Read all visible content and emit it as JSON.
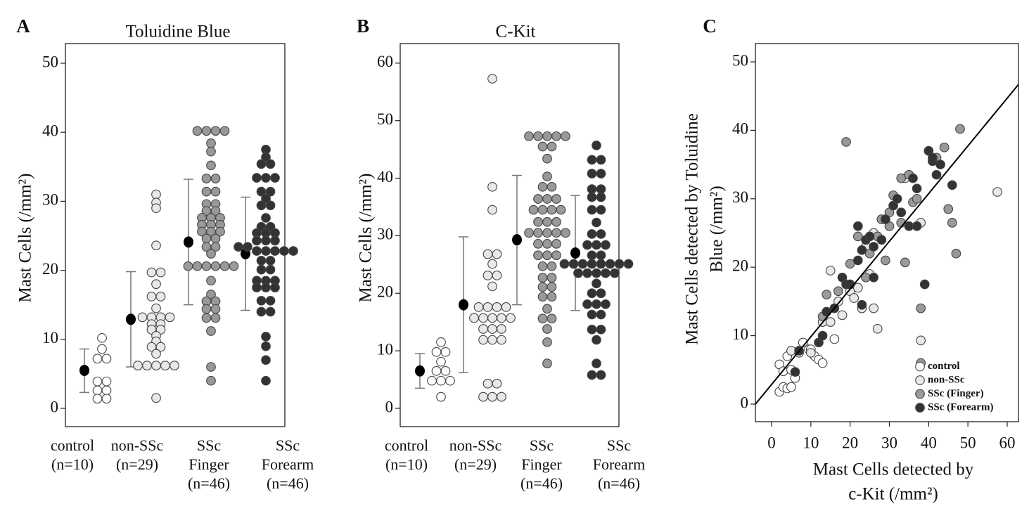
{
  "chart_data": [
    {
      "type": "dot",
      "panel": "A",
      "title": "Toluidine Blue",
      "y_label": "Mast Cells (/mm²)",
      "ylim": [
        -2.65,
        52.85
      ],
      "yticks": [
        0,
        10,
        20,
        30,
        40,
        50
      ],
      "groups": [
        {
          "label": [
            "control",
            "(n=10)"
          ],
          "color": "#ffffff",
          "values": [
            10.2,
            8.6,
            7.2,
            7.2,
            3.9,
            3.9,
            2.6,
            2.6,
            1.4,
            1.4
          ],
          "mean": 5.5,
          "whisker": [
            2.3,
            8.6
          ]
        },
        {
          "label": [
            "non-SSc",
            "(n=29)"
          ],
          "color": "#e8e8e8",
          "values": [
            31,
            29.8,
            29,
            23.6,
            19.7,
            19.7,
            18,
            16.2,
            16.2,
            14.5,
            13.2,
            13.2,
            13.2,
            13.2,
            12.2,
            12.2,
            11.4,
            11.4,
            10.5,
            9.7,
            8.9,
            8.9,
            7.9,
            6.2,
            6.2,
            6.2,
            6.2,
            6.2,
            1.5
          ],
          "mean": 12.9,
          "whisker": [
            6,
            19.8
          ]
        },
        {
          "label": [
            "SSc",
            "Finger",
            "(n=46)"
          ],
          "color": "#999999",
          "values": [
            40.2,
            40.2,
            40.2,
            40.2,
            38.4,
            37.2,
            35.2,
            33.3,
            33.3,
            31.4,
            31.4,
            29.6,
            29.6,
            28.6,
            28.6,
            27.6,
            27.6,
            27.6,
            26.6,
            26.6,
            26.6,
            25.6,
            25.6,
            25.6,
            24.6,
            24.6,
            23.4,
            23.4,
            22.4,
            20.6,
            20.6,
            20.6,
            20.6,
            20.6,
            20.6,
            18.5,
            16.5,
            15.5,
            15.5,
            14.4,
            14.4,
            13.1,
            13.1,
            11.2,
            6,
            4
          ],
          "mean": 24.1,
          "whisker": [
            15,
            33.2
          ]
        },
        {
          "label": [
            "SSc",
            "Forearm",
            "(n=46)"
          ],
          "color": "#333333",
          "values": [
            37.5,
            36.4,
            35.4,
            35.4,
            33.4,
            33.4,
            33.4,
            31.4,
            31.4,
            30.4,
            29.4,
            29.4,
            27.6,
            26.3,
            26.3,
            25.4,
            25.4,
            25.4,
            24.3,
            24.3,
            24.3,
            23.4,
            23.4,
            22.8,
            22.8,
            22.8,
            22.8,
            22.8,
            21.4,
            21.4,
            20.1,
            20.1,
            18.5,
            18.5,
            18.5,
            17.5,
            17.5,
            17.5,
            15.6,
            15.6,
            14,
            14,
            10.4,
            9,
            7,
            4
          ],
          "mean": 22.4,
          "whisker": [
            14.2,
            30.6
          ]
        }
      ]
    },
    {
      "type": "dot",
      "panel": "B",
      "title": "C-Kit",
      "y_label": "Mast Cells (/mm²)",
      "ylim": [
        -3.18,
        63.4
      ],
      "yticks": [
        0,
        10,
        20,
        30,
        40,
        50,
        60
      ],
      "groups": [
        {
          "label": [
            "control",
            "(n=10)"
          ],
          "color": "#ffffff",
          "values": [
            11.5,
            9.8,
            9.8,
            8.1,
            6.5,
            6.5,
            4.8,
            4.8,
            4.8,
            2
          ],
          "mean": 6.5,
          "whisker": [
            3.5,
            9.5
          ]
        },
        {
          "label": [
            "non-SSc",
            "(n=29)"
          ],
          "color": "#e8e8e8",
          "values": [
            57.3,
            38.5,
            34.5,
            26.8,
            26.8,
            25.1,
            23.1,
            23.1,
            21.2,
            17.6,
            17.6,
            17.6,
            15.7,
            15.7,
            15.7,
            15.7,
            13.8,
            13.8,
            13.8,
            11.9,
            11.9,
            4.3,
            4.3,
            2,
            2,
            2,
            15.7,
            11.9,
            17.6
          ],
          "mean": 18,
          "whisker": [
            6.2,
            29.8
          ]
        },
        {
          "label": [
            "SSc",
            "Finger",
            "(n=46)"
          ],
          "color": "#999999",
          "values": [
            47.3,
            47.3,
            47.3,
            47.3,
            47.3,
            45.5,
            45.5,
            43.4,
            40.3,
            38.5,
            38.5,
            36.4,
            36.4,
            36.4,
            34.5,
            34.5,
            34.5,
            34.5,
            32.4,
            32.4,
            32.4,
            30.5,
            30.5,
            30.5,
            30.5,
            30.5,
            28.6,
            28.6,
            28.6,
            26.6,
            26.6,
            26.6,
            24.7,
            24.7,
            22.7,
            22.7,
            21.1,
            21.1,
            19.4,
            19.4,
            17.3,
            15.6,
            15.6,
            13.8,
            11.5,
            7.8
          ],
          "mean": 29.3,
          "whisker": [
            18,
            40.5
          ]
        },
        {
          "label": [
            "SSc",
            "Forearm",
            "(n=46)"
          ],
          "color": "#333333",
          "values": [
            45.7,
            43.2,
            43.2,
            40.8,
            40.8,
            38.1,
            38.1,
            36.7,
            36.7,
            34.5,
            34.5,
            32.3,
            30.3,
            30.3,
            28.4,
            28.4,
            28.4,
            26.6,
            26.6,
            25.1,
            25.1,
            25.1,
            25.1,
            25.1,
            25.1,
            25.1,
            25.1,
            23.5,
            23.5,
            23.5,
            23.5,
            23.5,
            21.7,
            20,
            20,
            18.1,
            18.1,
            18.1,
            16.3,
            16.3,
            13.7,
            13.7,
            11.9,
            7.8,
            5.8,
            5.8
          ],
          "mean": 27,
          "whisker": [
            17,
            37
          ]
        }
      ]
    },
    {
      "type": "scatter",
      "panel": "C",
      "x_label": [
        "Mast Cells detected by",
        "c-Kit (/mm²)"
      ],
      "y_label": [
        "Mast Cells detected by Toluidine",
        "Blue (/mm²)"
      ],
      "xlim": [
        -4.12,
        62.87
      ],
      "ylim": [
        -2.57,
        52.67
      ],
      "xticks": [
        0,
        10,
        20,
        30,
        40,
        50,
        60
      ],
      "yticks": [
        0,
        10,
        20,
        30,
        40,
        50
      ],
      "legend": "lower right",
      "fit": {
        "slope": 0.697,
        "intercept": 2.87
      },
      "series": [
        {
          "name": "control",
          "color": "#ffffff",
          "x": [
            2,
            3,
            4,
            5,
            2,
            3,
            5,
            6,
            8,
            9.5,
            11,
            12,
            13,
            16,
            10,
            4
          ],
          "y": [
            1.8,
            2.5,
            2.3,
            2.5,
            5.8,
            4.8,
            5,
            3.8,
            9,
            8,
            7,
            6.5,
            6,
            9.5,
            8,
            7
          ]
        },
        {
          "name": "non-SSc",
          "color": "#e8e8e8",
          "x": [
            5,
            7,
            10,
            13,
            15,
            18,
            20,
            22,
            24,
            26,
            27,
            23,
            26,
            38,
            57.5,
            38,
            34,
            25,
            21,
            17,
            15
          ],
          "y": [
            7.8,
            7.5,
            7.5,
            12,
            19.5,
            13,
            16.5,
            17,
            23,
            25,
            11,
            14,
            14,
            9.3,
            31,
            26.5,
            33,
            19,
            15.5,
            15,
            12
          ]
        },
        {
          "name": "SSc (Finger)",
          "color": "#999999",
          "x": [
            13,
            14,
            17,
            19,
            20,
            22,
            25,
            27,
            28,
            30,
            31,
            33,
            35,
            36,
            37,
            38,
            38,
            42,
            44,
            45,
            46,
            47,
            48,
            34,
            30,
            29,
            24,
            33
          ],
          "y": [
            12.8,
            16,
            16.5,
            38.3,
            20.5,
            24.5,
            22,
            24.5,
            27,
            28,
            30.5,
            33,
            33.5,
            29.5,
            30,
            14,
            6,
            36,
            37.5,
            28.5,
            26.5,
            22,
            40.2,
            20.7,
            26,
            21,
            18.5,
            26.5
          ]
        },
        {
          "name": "SSc (Forearm)",
          "color": "#333333",
          "x": [
            6,
            7,
            12,
            14,
            16,
            18,
            19,
            20,
            22,
            22,
            23,
            23,
            24,
            25,
            26,
            26,
            28,
            29,
            31,
            32,
            33,
            35,
            36,
            37,
            37,
            39,
            40,
            41,
            42,
            43,
            46,
            41,
            13
          ],
          "y": [
            4.7,
            7.8,
            9,
            13.5,
            14,
            18.5,
            17.5,
            17.5,
            26,
            21,
            22.5,
            14.5,
            24,
            24.5,
            23,
            18.5,
            24,
            27,
            29,
            30,
            28,
            26,
            33,
            31.5,
            26,
            17.5,
            37,
            35.5,
            33.5,
            35,
            32,
            36,
            10
          ]
        }
      ]
    }
  ]
}
